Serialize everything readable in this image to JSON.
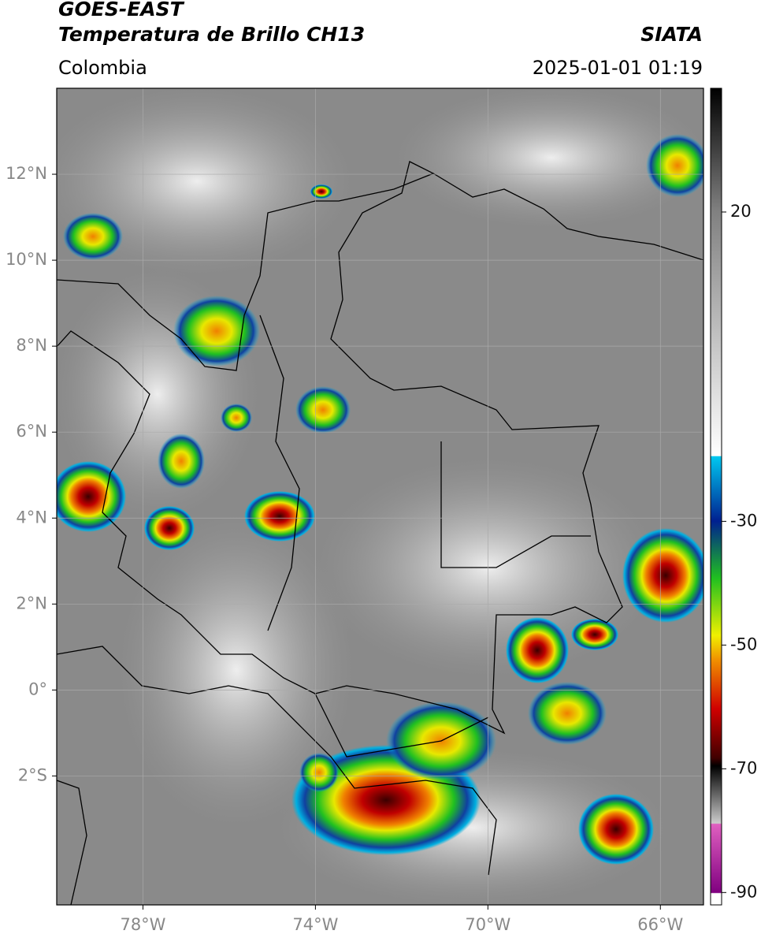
{
  "header": {
    "title": "GOES-EAST",
    "subtitle": "Temperatura de Brillo CH13",
    "source": "SIATA",
    "region": "Colombia",
    "datetime": "2025-01-01 01:19"
  },
  "map": {
    "xlim": [
      -80,
      -65
    ],
    "ylim": [
      -5,
      14
    ],
    "xticks": [
      {
        "value": -78,
        "label": "78°W"
      },
      {
        "value": -74,
        "label": "74°W"
      },
      {
        "value": -70,
        "label": "70°W"
      },
      {
        "value": -66,
        "label": "66°W"
      }
    ],
    "yticks": [
      {
        "value": 12,
        "label": "12°N"
      },
      {
        "value": 10,
        "label": "10°N"
      },
      {
        "value": 8,
        "label": "8°N"
      },
      {
        "value": 6,
        "label": "6°N"
      },
      {
        "value": 4,
        "label": "4°N"
      },
      {
        "value": 2,
        "label": "2°N"
      },
      {
        "value": 0,
        "label": "0°"
      },
      {
        "value": -2,
        "label": "2°S"
      }
    ],
    "grid": true
  },
  "colorbar": {
    "clim": [
      -92,
      40
    ],
    "ticks": [
      20,
      -30,
      -50,
      -70,
      -90
    ]
  }
}
